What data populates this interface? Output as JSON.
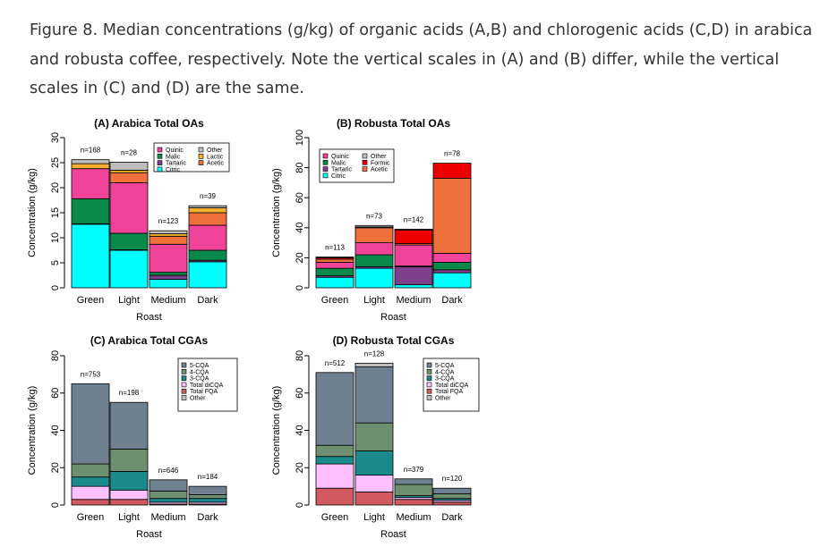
{
  "caption": "Figure 8. Median concentrations (g/kg) of organic acids (A,B) and chlorogenic acids (C,D) in arabica and robusta coffee, respectively. Note the vertical scales in (A) and (B) differ, while the vertical scales in (C) and (D) are the same.",
  "chart_data": [
    {
      "type": "bar",
      "stacked": true,
      "title": "(A) Arabica Total OAs",
      "xlabel": "Roast",
      "ylabel": "Concentration (g/kg)",
      "ylim": [
        0,
        30
      ],
      "yticks": [
        0,
        5,
        10,
        15,
        20,
        25,
        30
      ],
      "categories": [
        "Green",
        "Light",
        "Medium",
        "Dark"
      ],
      "counts": [
        "n=168",
        "n=28",
        "n=123",
        "n=39"
      ],
      "legend_position": "top-right",
      "series": [
        {
          "name": "Citric",
          "color": "#00FFFF",
          "values": [
            12.7,
            7.5,
            1.7,
            5.2
          ]
        },
        {
          "name": "Tartaric",
          "color": "#7B3F8C",
          "values": [
            0.1,
            0.1,
            0.8,
            0.3
          ]
        },
        {
          "name": "Malic",
          "color": "#0A8A4A",
          "values": [
            5.0,
            3.3,
            0.6,
            2.0
          ]
        },
        {
          "name": "Quinic",
          "color": "#F0449A",
          "values": [
            6.0,
            10.1,
            5.6,
            5.0
          ]
        },
        {
          "name": "Acetic",
          "color": "#F0703C",
          "values": [
            0,
            2.0,
            1.6,
            2.5
          ]
        },
        {
          "name": "Lactic",
          "color": "#F5B030",
          "values": [
            1.0,
            0.5,
            0.5,
            1.0
          ]
        },
        {
          "name": "Other",
          "color": "#BEBEBE",
          "values": [
            0.8,
            1.6,
            0.6,
            0.4
          ]
        }
      ]
    },
    {
      "type": "bar",
      "stacked": true,
      "title": "(B) Robusta Total OAs",
      "xlabel": "Roast",
      "ylabel": "Concentration (g/kg)",
      "ylim": [
        0,
        100
      ],
      "yticks": [
        0,
        20,
        40,
        60,
        80,
        100
      ],
      "categories": [
        "Green",
        "Light",
        "Medium",
        "Dark"
      ],
      "counts": [
        "n=113",
        "n=73",
        "n=142",
        "n=78"
      ],
      "legend_position": "top-right",
      "series": [
        {
          "name": "Citric",
          "color": "#00FFFF",
          "values": [
            7,
            13,
            2,
            10
          ]
        },
        {
          "name": "Tartaric",
          "color": "#7B3F8C",
          "values": [
            1,
            1,
            12,
            2
          ]
        },
        {
          "name": "Malic",
          "color": "#0A8A4A",
          "values": [
            5,
            8,
            0.5,
            5
          ]
        },
        {
          "name": "Quinic",
          "color": "#F0449A",
          "values": [
            4,
            8,
            14,
            6
          ]
        },
        {
          "name": "Acetic",
          "color": "#F0703C",
          "values": [
            2,
            10,
            1,
            50
          ]
        },
        {
          "name": "Formic",
          "color": "#EE0000",
          "values": [
            1,
            0.5,
            9,
            10
          ]
        },
        {
          "name": "Other",
          "color": "#BEBEBE",
          "values": [
            0.5,
            1,
            0.5,
            0
          ]
        }
      ]
    },
    {
      "type": "bar",
      "stacked": true,
      "title": "(C) Arabica Total CGAs",
      "xlabel": "Roast",
      "ylabel": "Concentration (g/kg)",
      "ylim": [
        0,
        80
      ],
      "yticks": [
        0,
        20,
        40,
        60,
        80
      ],
      "categories": [
        "Green",
        "Light",
        "Medium",
        "Dark"
      ],
      "counts": [
        "n=753",
        "n=198",
        "n=646",
        "n=184"
      ],
      "legend_position": "top-right",
      "series": [
        {
          "name": "Total FQA",
          "color": "#D05A60",
          "values": [
            3,
            3,
            0.5,
            0.5
          ]
        },
        {
          "name": "Total diCQA",
          "color": "#FFC0FF",
          "values": [
            7,
            5,
            1,
            1
          ]
        },
        {
          "name": "3-CQA",
          "color": "#1A8A8C",
          "values": [
            5,
            10,
            2,
            2
          ]
        },
        {
          "name": "4-CQA",
          "color": "#6E9070",
          "values": [
            7,
            12,
            4,
            2
          ]
        },
        {
          "name": "5-CQA",
          "color": "#6F8090",
          "values": [
            43,
            25,
            6,
            4.5
          ]
        },
        {
          "name": "Other",
          "color": "#BEBEBE",
          "values": [
            0,
            0,
            0,
            0
          ]
        }
      ]
    },
    {
      "type": "bar",
      "stacked": true,
      "title": "(D) Robusta Total CGAs",
      "xlabel": "Roast",
      "ylabel": "Concentration (g/kg)",
      "ylim": [
        0,
        80
      ],
      "yticks": [
        0,
        20,
        40,
        60,
        80
      ],
      "categories": [
        "Green",
        "Light",
        "Medium",
        "Dark"
      ],
      "counts": [
        "n=512",
        "n=128",
        "n=379",
        "n=120"
      ],
      "legend_position": "top-right",
      "series": [
        {
          "name": "Total FQA",
          "color": "#D05A60",
          "values": [
            9,
            7,
            3,
            1.5
          ]
        },
        {
          "name": "Total diCQA",
          "color": "#FFC0FF",
          "values": [
            13,
            9,
            1,
            1
          ]
        },
        {
          "name": "3-CQA",
          "color": "#1A8A8C",
          "values": [
            4,
            13,
            1,
            1
          ]
        },
        {
          "name": "4-CQA",
          "color": "#6E9070",
          "values": [
            6,
            15,
            6,
            2.5
          ]
        },
        {
          "name": "5-CQA",
          "color": "#6F8090",
          "values": [
            39,
            30,
            3,
            3
          ]
        },
        {
          "name": "Other",
          "color": "#BEBEBE",
          "values": [
            0,
            2,
            0,
            0
          ]
        }
      ]
    }
  ]
}
